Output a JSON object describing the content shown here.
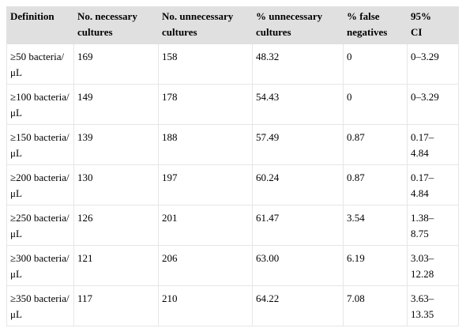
{
  "table": {
    "header": [
      "Definition",
      "No. necessary cultures",
      "No. unnecessary cultures",
      "% unnecessary cultures",
      "% false negatives",
      "95% CI"
    ],
    "rows": [
      [
        "≥50 bacteria/μL",
        "169",
        "158",
        "48.32",
        "0",
        "0–3.29"
      ],
      [
        "≥100 bacteria/μL",
        "149",
        "178",
        "54.43",
        "0",
        "0–3.29"
      ],
      [
        "≥150 bacteria/μL",
        "139",
        "188",
        "57.49",
        "0.87",
        "0.17–4.84"
      ],
      [
        "≥200 bacteria/μL",
        "130",
        "197",
        "60.24",
        "0.87",
        "0.17–4.84"
      ],
      [
        "≥250 bacteria/μL",
        "126",
        "201",
        "61.47",
        "3.54",
        "1.38–8.75"
      ],
      [
        "≥300 bacteria/μL",
        "121",
        "206",
        "63.00",
        "6.19",
        "3.03–12.28"
      ],
      [
        "≥350 bacteria/μL",
        "117",
        "210",
        "64.22",
        "7.08",
        "3.63–13.35"
      ]
    ]
  }
}
